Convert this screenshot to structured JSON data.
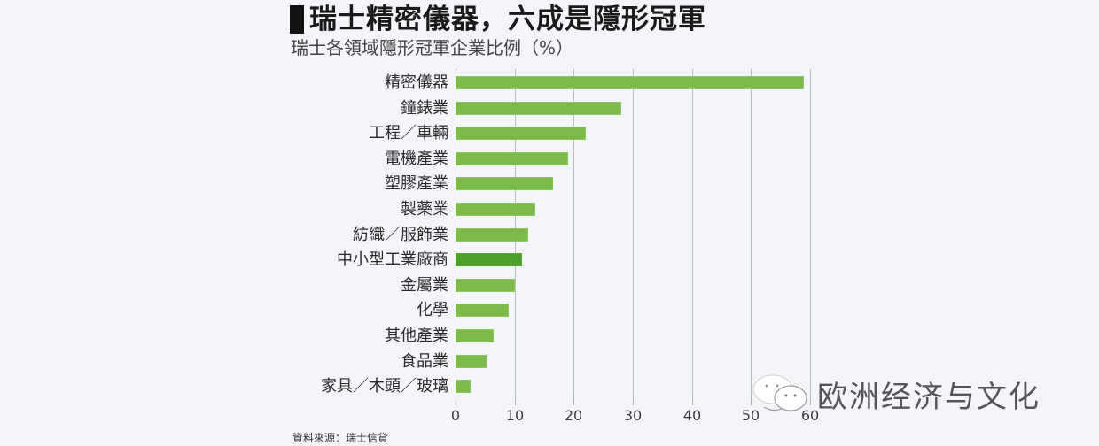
{
  "header": {
    "title": "瑞士精密儀器，六成是隱形冠軍",
    "subtitle": "瑞士各領域隱形冠軍企業比例（%）"
  },
  "source": "資料來源：瑞士信貸",
  "watermark": {
    "icon": "wechat-icon",
    "text": "欧洲经济与文化"
  },
  "colors": {
    "bar": "#7cbb4a",
    "bar_highlight": "#4e9f2a",
    "background": "#f3f5f9",
    "gridline": "#b9bcc2"
  },
  "chart_data": {
    "type": "bar",
    "orientation": "horizontal",
    "title": "瑞士精密儀器，六成是隱形冠軍",
    "subtitle": "瑞士各領域隱形冠軍企業比例（%）",
    "xlabel": "",
    "ylabel": "",
    "xlim": [
      0,
      60
    ],
    "x_ticks": [
      "0",
      "10",
      "20",
      "30",
      "40",
      "50",
      "60"
    ],
    "grid": true,
    "legend": null,
    "categories": [
      "精密儀器",
      "鐘錶業",
      "工程／車輛",
      "電機產業",
      "塑膠產業",
      "製藥業",
      "紡織／服飾業",
      "中小型工業廠商",
      "金屬業",
      "化學",
      "其他產業",
      "食品業",
      "家具／木頭／玻璃"
    ],
    "values": [
      59,
      28,
      22,
      19,
      16.5,
      13.5,
      12.3,
      11.2,
      10,
      9,
      6.4,
      5.2,
      2.5
    ],
    "highlighted_category": "中小型工業廠商",
    "source": "資料來源：瑞士信貸"
  }
}
